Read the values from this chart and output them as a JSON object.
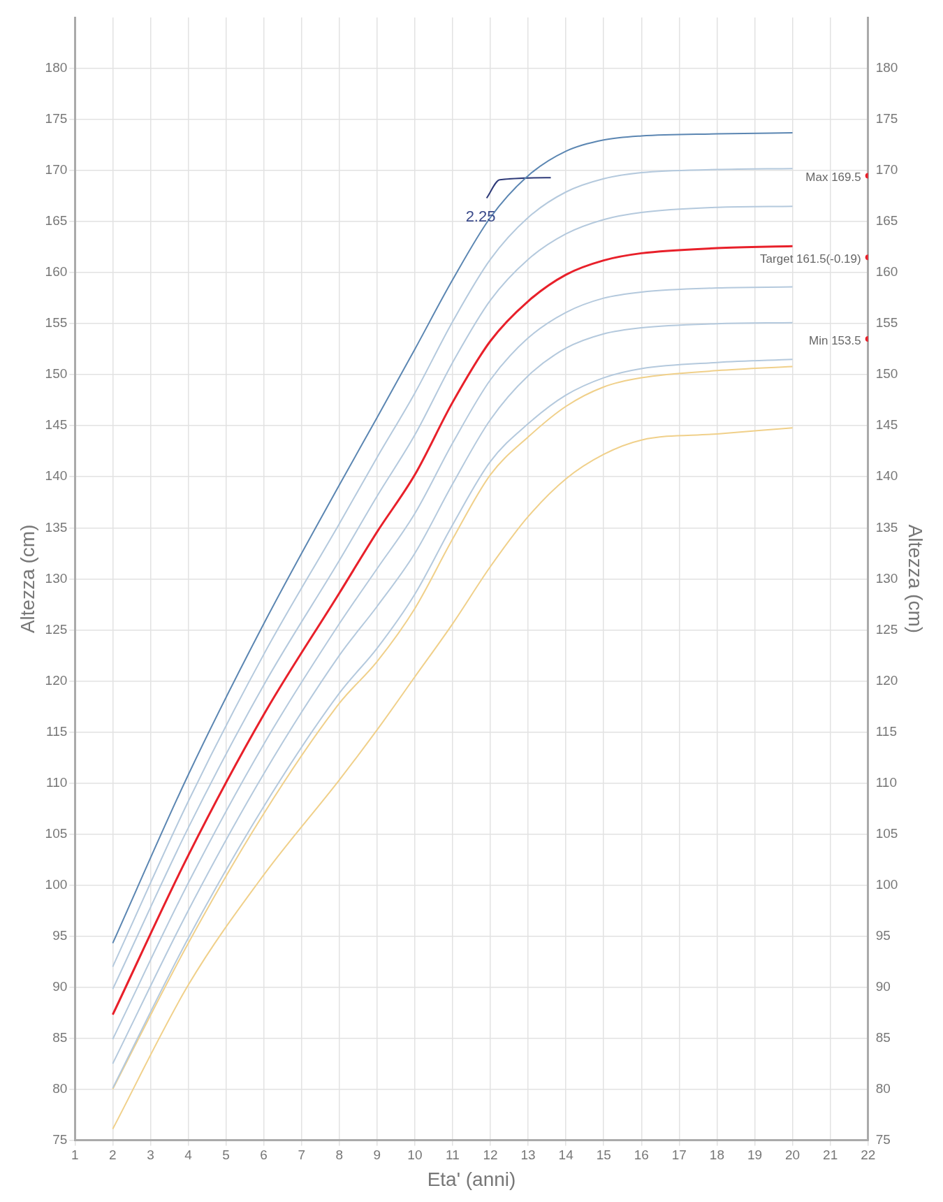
{
  "chart_data": {
    "type": "line",
    "xlabel": "Eta' (anni)",
    "ylabel": "Altezza (cm)",
    "y2label": "Altezza (cm)",
    "x": [
      2,
      4,
      6,
      8,
      9,
      10,
      11,
      12,
      13,
      14,
      15,
      16,
      18,
      20
    ],
    "series": [
      {
        "color": "#5b86b2",
        "values": [
          94.3,
          110.8,
          125.6,
          139.2,
          145.8,
          152.5,
          159.3,
          165.4,
          169.5,
          171.9,
          173.0,
          173.4,
          173.6,
          173.7
        ]
      },
      {
        "color": "#b4c9dd",
        "values": [
          92.0,
          108.2,
          122.6,
          135.4,
          141.9,
          148.2,
          155.2,
          161.3,
          165.4,
          167.9,
          169.2,
          169.8,
          170.1,
          170.2
        ]
      },
      {
        "color": "#b4c9dd",
        "values": [
          89.8,
          105.6,
          119.6,
          131.8,
          138.1,
          144.1,
          151.2,
          157.3,
          161.3,
          163.8,
          165.2,
          165.9,
          166.4,
          166.5
        ]
      },
      {
        "color": "#e8202a",
        "values": [
          87.3,
          102.9,
          116.7,
          128.6,
          134.6,
          140.2,
          147.3,
          153.3,
          157.2,
          159.8,
          161.2,
          161.9,
          162.4,
          162.6
        ]
      },
      {
        "color": "#b4c9dd",
        "values": [
          84.9,
          100.2,
          113.8,
          125.6,
          131.0,
          136.4,
          143.3,
          149.5,
          153.6,
          156.1,
          157.5,
          158.1,
          158.5,
          158.6
        ]
      },
      {
        "color": "#b4c9dd",
        "values": [
          82.5,
          97.5,
          110.9,
          122.5,
          127.3,
          132.5,
          139.3,
          145.6,
          149.9,
          152.6,
          154.0,
          154.6,
          155.0,
          155.1
        ]
      },
      {
        "color": "#b4c9dd",
        "values": [
          80.1,
          94.8,
          107.7,
          118.8,
          123.2,
          128.5,
          135.3,
          141.5,
          145.2,
          148.0,
          149.7,
          150.6,
          151.2,
          151.5
        ]
      },
      {
        "color": "#f0d08a",
        "values": [
          80.0,
          94.3,
          107.0,
          117.8,
          121.9,
          127.1,
          133.9,
          140.2,
          143.9,
          146.9,
          148.8,
          149.7,
          150.4,
          150.8
        ]
      },
      {
        "color": "#f0d08a",
        "values": [
          76.1,
          90.2,
          101.0,
          110.3,
          115.2,
          120.4,
          125.6,
          131.2,
          136.1,
          139.8,
          142.2,
          143.6,
          144.2,
          144.8
        ]
      },
      {
        "type": "line",
        "color": "#2e3a78",
        "x": [
          11.9,
          12.25,
          13.6
        ],
        "values": [
          167.3,
          169.1,
          169.3
        ]
      },
      {
        "type": "scatter",
        "color": "#e8202a",
        "x": [
          22,
          22,
          22
        ],
        "values": [
          169.5,
          161.5,
          153.5
        ],
        "marker": "circle",
        "value_labels": [
          "Max 169.5",
          "Target 161.5(-0.19)",
          "Min 153.5"
        ]
      }
    ],
    "annotations": [
      {
        "text": "2.25",
        "x": 11.9,
        "y": 167.3
      }
    ],
    "xlim": [
      1,
      22
    ],
    "xticks": [
      1,
      2,
      3,
      4,
      5,
      6,
      7,
      8,
      9,
      10,
      11,
      12,
      13,
      14,
      15,
      16,
      17,
      18,
      19,
      20,
      21,
      22
    ],
    "ylim": [
      75,
      185
    ],
    "yticks": [
      75,
      80,
      85,
      90,
      95,
      100,
      105,
      110,
      115,
      120,
      125,
      130,
      135,
      140,
      145,
      150,
      155,
      160,
      165,
      170,
      175,
      180
    ],
    "y2lim": [
      75,
      185
    ],
    "y2ticks": [
      75,
      80,
      85,
      90,
      95,
      100,
      105,
      110,
      115,
      120,
      125,
      130,
      135,
      140,
      145,
      150,
      155,
      160,
      165,
      170,
      175,
      180
    ],
    "grid": true,
    "legend": false
  }
}
